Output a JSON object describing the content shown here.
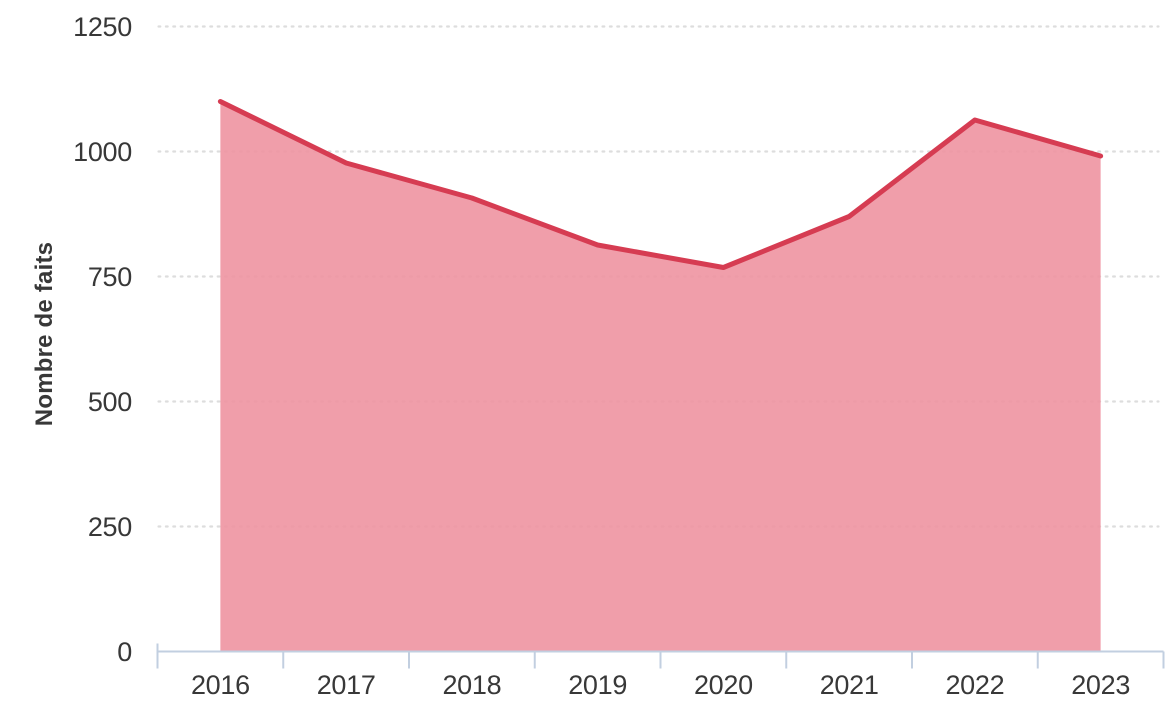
{
  "chart_data": {
    "type": "area",
    "title": "",
    "categories": [
      "2016",
      "2017",
      "2018",
      "2019",
      "2020",
      "2021",
      "2022",
      "2023"
    ],
    "series": [
      {
        "name": "Nombre de faits",
        "values": [
          1100,
          977,
          907,
          813,
          768,
          870,
          1063,
          991
        ]
      }
    ],
    "xlabel": "",
    "ylabel": "Nombre de faits",
    "ylim": [
      0,
      1250
    ],
    "yticks": [
      0,
      250,
      500,
      750,
      1000,
      1250
    ],
    "grid": "horizontal-dotted",
    "legend": "none",
    "colors": {
      "line": "#d63c52",
      "fill": "#ee93a1",
      "grid": "#d8d8d8",
      "axis": "#c2cfe0",
      "text": "#383838"
    }
  }
}
